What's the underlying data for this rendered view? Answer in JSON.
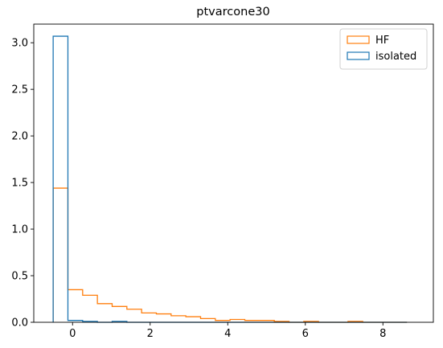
{
  "chart_data": {
    "type": "histogram",
    "title": "ptvarcone30",
    "xlabel": "",
    "ylabel": "",
    "xlim": [
      -1.0,
      9.3
    ],
    "ylim": [
      0,
      3.2
    ],
    "x_ticks": [
      0,
      2,
      4,
      6,
      8
    ],
    "x_tick_labels": [
      "0",
      "2",
      "4",
      "6",
      "8"
    ],
    "y_ticks": [
      0.0,
      0.5,
      1.0,
      1.5,
      2.0,
      2.5,
      3.0
    ],
    "y_tick_labels": [
      "0.0",
      "0.5",
      "1.0",
      "1.5",
      "2.0",
      "2.5",
      "3.0"
    ],
    "grid": false,
    "legend_position": "top-right",
    "bin_edges": [
      -0.5,
      -0.12,
      0.26,
      0.64,
      1.02,
      1.4,
      1.78,
      2.16,
      2.54,
      2.92,
      3.3,
      3.68,
      4.06,
      4.44,
      4.82,
      5.2,
      5.58,
      5.96,
      6.34,
      6.72,
      7.1,
      7.48,
      7.86,
      8.24,
      8.62
    ],
    "series": [
      {
        "name": "HF",
        "color": "#ff7f0e",
        "values": [
          1.44,
          0.35,
          0.29,
          0.2,
          0.17,
          0.14,
          0.1,
          0.09,
          0.07,
          0.06,
          0.04,
          0.02,
          0.03,
          0.02,
          0.02,
          0.01,
          0.0,
          0.01,
          0.0,
          0.0,
          0.01,
          0.0,
          0.0,
          0.0
        ]
      },
      {
        "name": "isolated",
        "color": "#1f77b4",
        "values": [
          3.07,
          0.02,
          0.01,
          0.0,
          0.01,
          0.0,
          0.0,
          0.0,
          0.0,
          0.0,
          0.0,
          0.0,
          0.0,
          0.0,
          0.0,
          0.0,
          0.0,
          0.0,
          0.0,
          0.0,
          0.0,
          0.0,
          0.0,
          0.0
        ]
      }
    ]
  }
}
